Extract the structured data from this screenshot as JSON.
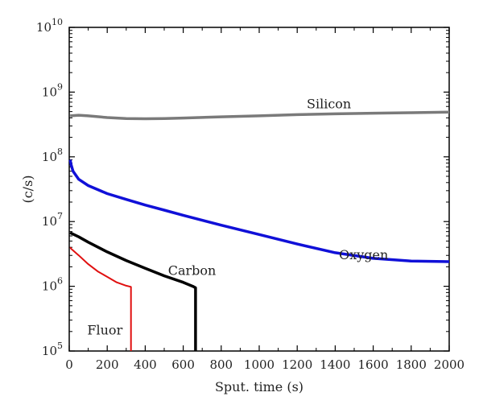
{
  "chart_data": {
    "type": "line",
    "xlabel": "Sput. time (s)",
    "ylabel": "(c/s)",
    "xlim": [
      0,
      2000
    ],
    "ylim": [
      100000,
      10000000000
    ],
    "yscale": "log",
    "grid": false,
    "x_ticks": [
      "0",
      "200",
      "400",
      "600",
      "800",
      "1000",
      "1200",
      "1400",
      "1600",
      "1800",
      "2000"
    ],
    "y_ticks": [
      {
        "base": "10",
        "exp": "5",
        "value": 100000
      },
      {
        "base": "10",
        "exp": "6",
        "value": 1000000
      },
      {
        "base": "10",
        "exp": "7",
        "value": 10000000
      },
      {
        "base": "10",
        "exp": "8",
        "value": 100000000
      },
      {
        "base": "10",
        "exp": "9",
        "value": 1000000000
      },
      {
        "base": "10",
        "exp": "10",
        "value": 10000000000
      }
    ],
    "series": [
      {
        "name": "Silicon",
        "color": "#7a7a7a",
        "label_at": [
          1250,
          560000000
        ],
        "points": [
          [
            5,
            430000000
          ],
          [
            50,
            440000000
          ],
          [
            100,
            430000000
          ],
          [
            200,
            405000000
          ],
          [
            300,
            390000000
          ],
          [
            400,
            388000000
          ],
          [
            500,
            390000000
          ],
          [
            600,
            398000000
          ],
          [
            800,
            415000000
          ],
          [
            1000,
            430000000
          ],
          [
            1200,
            448000000
          ],
          [
            1400,
            462000000
          ],
          [
            1600,
            472000000
          ],
          [
            1800,
            480000000
          ],
          [
            2000,
            490000000
          ]
        ]
      },
      {
        "name": "Oxygen",
        "color": "#1010d8",
        "label_at": [
          1420,
          2600000
        ],
        "points": [
          [
            5,
            90000000
          ],
          [
            10,
            75000000
          ],
          [
            20,
            60000000
          ],
          [
            50,
            45000000
          ],
          [
            100,
            36000000
          ],
          [
            200,
            27000000
          ],
          [
            300,
            22000000
          ],
          [
            400,
            18000000
          ],
          [
            500,
            15000000
          ],
          [
            600,
            12500000
          ],
          [
            800,
            8800000
          ],
          [
            1000,
            6300000
          ],
          [
            1200,
            4500000
          ],
          [
            1400,
            3300000
          ],
          [
            1600,
            2700000
          ],
          [
            1800,
            2450000
          ],
          [
            2000,
            2400000
          ]
        ]
      },
      {
        "name": "Carbon",
        "color": "#000000",
        "label_at": [
          520,
          1500000
        ],
        "points": [
          [
            5,
            6800000
          ],
          [
            10,
            6600000
          ],
          [
            50,
            5800000
          ],
          [
            100,
            4800000
          ],
          [
            200,
            3400000
          ],
          [
            300,
            2500000
          ],
          [
            400,
            1900000
          ],
          [
            500,
            1450000
          ],
          [
            600,
            1150000
          ],
          [
            650,
            1000000
          ],
          [
            665,
            950000
          ],
          [
            665,
            100000
          ]
        ]
      },
      {
        "name": "Fluor",
        "color": "#e01010",
        "label_at": [
          95,
          180000
        ],
        "points": [
          [
            5,
            4000000
          ],
          [
            10,
            3800000
          ],
          [
            50,
            3000000
          ],
          [
            100,
            2200000
          ],
          [
            150,
            1700000
          ],
          [
            200,
            1400000
          ],
          [
            250,
            1150000
          ],
          [
            300,
            1020000
          ],
          [
            325,
            980000
          ],
          [
            325,
            100000
          ]
        ]
      }
    ]
  }
}
